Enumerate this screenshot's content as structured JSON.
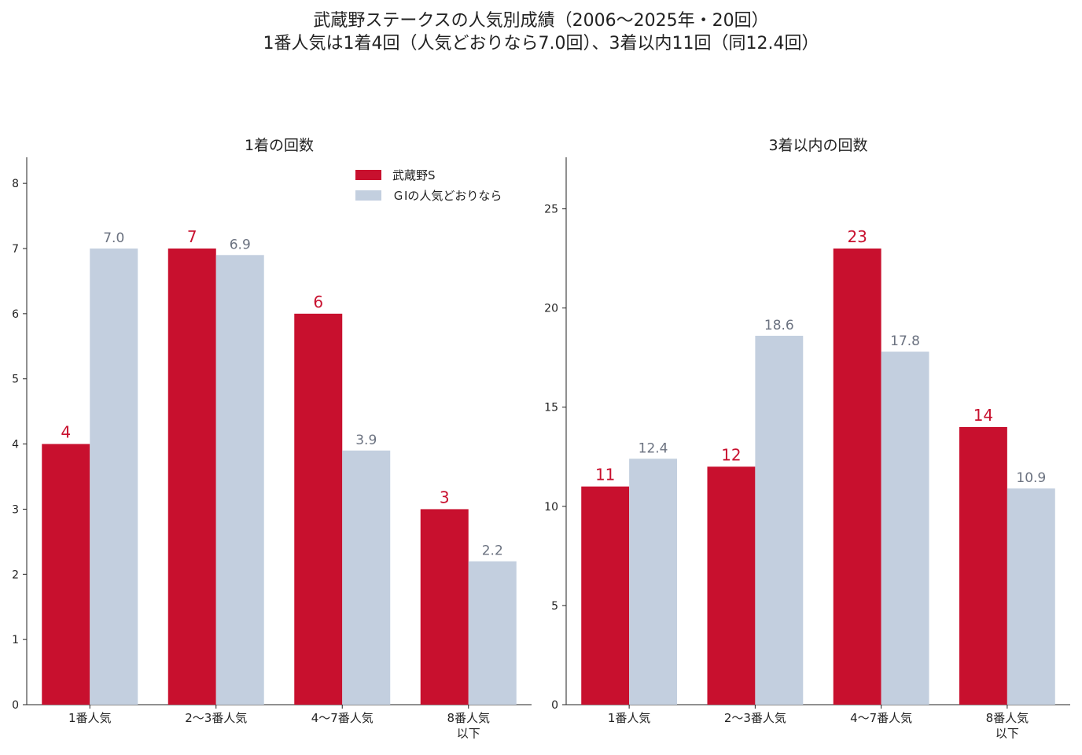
{
  "figure": {
    "title_line1": "武蔵野ステークスの人気別成績（2006〜2025年・20回）",
    "title_line2": "1番人気は1着4回（人気どおりなら7.0回）、3着以内11回（同12.4回）"
  },
  "colors": {
    "actual": "#c8102e",
    "expected": "#c3cfdf",
    "expected_label": "#6b7280",
    "axis": "#222222"
  },
  "legend": {
    "items": [
      {
        "label": "武蔵野S",
        "color": "#c8102e"
      },
      {
        "label": "ＧⅠの人気どおりなら",
        "color": "#c3cfdf"
      }
    ],
    "placement": "top-right of left panel"
  },
  "chart_data": [
    {
      "type": "bar",
      "title": "1着の回数",
      "categories": [
        "1番人気",
        "2〜3番人気",
        "4〜7番人気",
        "8番人気\n以下"
      ],
      "series": [
        {
          "name": "武蔵野S",
          "values": [
            4,
            7,
            6,
            3
          ],
          "labels": [
            "4",
            "7",
            "6",
            "3"
          ]
        },
        {
          "name": "ＧⅠの人気どおりなら",
          "values": [
            7.0,
            6.9,
            3.9,
            2.2
          ],
          "labels": [
            "7.0",
            "6.9",
            "3.9",
            "2.2"
          ]
        }
      ],
      "ylim": [
        0,
        8.4
      ],
      "yticks": [
        0,
        1,
        2,
        3,
        4,
        5,
        6,
        7,
        8
      ],
      "grid": false
    },
    {
      "type": "bar",
      "title": "3着以内の回数",
      "categories": [
        "1番人気",
        "2〜3番人気",
        "4〜7番人気",
        "8番人気\n以下"
      ],
      "series": [
        {
          "name": "武蔵野S",
          "values": [
            11,
            12,
            23,
            14
          ],
          "labels": [
            "11",
            "12",
            "23",
            "14"
          ]
        },
        {
          "name": "ＧⅠの人気どおりなら",
          "values": [
            12.4,
            18.6,
            17.8,
            10.9
          ],
          "labels": [
            "12.4",
            "18.6",
            "17.8",
            "10.9"
          ]
        }
      ],
      "ylim": [
        0,
        27.6
      ],
      "yticks": [
        0,
        5,
        10,
        15,
        20,
        25
      ],
      "grid": false
    }
  ]
}
